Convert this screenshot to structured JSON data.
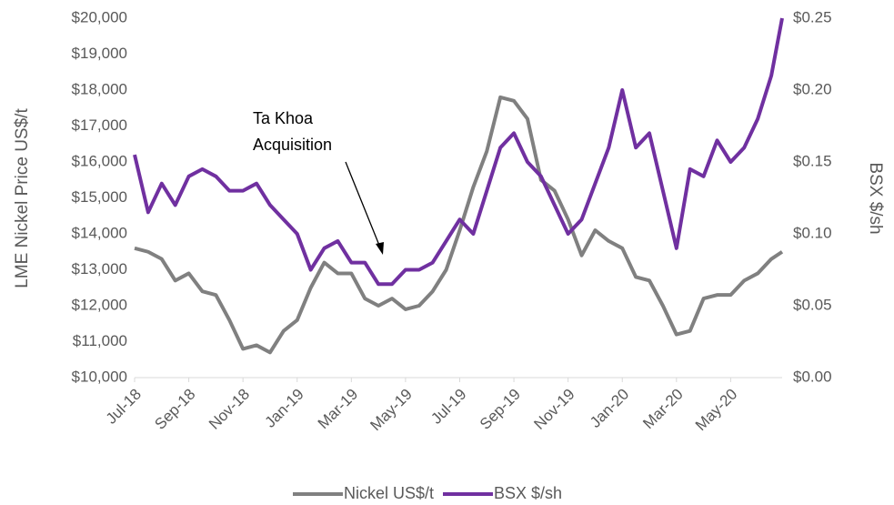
{
  "chart_data": {
    "type": "line",
    "annotation": [
      "Ta Khoa",
      "Acquisition"
    ],
    "ylabel": "LME Nickel Price US$/t",
    "y2label": "BSX $/sh",
    "x": [
      0,
      0.5,
      1,
      1.5,
      2,
      2.5,
      3,
      3.5,
      4,
      4.5,
      5,
      5.5,
      6,
      6.5,
      7,
      7.5,
      8,
      8.5,
      9,
      9.5,
      10,
      10.5,
      11,
      11.5,
      12,
      12.5,
      13,
      13.5,
      14,
      14.5,
      15,
      15.5,
      16,
      16.5,
      17,
      17.5,
      18,
      18.5,
      19,
      19.5,
      20,
      20.5,
      21,
      21.5,
      22,
      22.5,
      23,
      23.5,
      23.9
    ],
    "xlim": [
      0,
      23.9
    ],
    "xticks": [
      {
        "value": 0,
        "label": "Jul-18"
      },
      {
        "value": 2,
        "label": "Sep-18"
      },
      {
        "value": 4,
        "label": "Nov-18"
      },
      {
        "value": 6,
        "label": "Jan-19"
      },
      {
        "value": 8,
        "label": "Mar-19"
      },
      {
        "value": 10,
        "label": "May-19"
      },
      {
        "value": 12,
        "label": "Jul-19"
      },
      {
        "value": 14,
        "label": "Sep-19"
      },
      {
        "value": 16,
        "label": "Nov-19"
      },
      {
        "value": 18,
        "label": "Jan-20"
      },
      {
        "value": 20,
        "label": "Mar-20"
      },
      {
        "value": 22,
        "label": "May-20"
      }
    ],
    "ylim": [
      10000,
      20000
    ],
    "yticks": [
      {
        "value": 10000,
        "label": "$10,000"
      },
      {
        "value": 11000,
        "label": "$11,000"
      },
      {
        "value": 12000,
        "label": "$12,000"
      },
      {
        "value": 13000,
        "label": "$13,000"
      },
      {
        "value": 14000,
        "label": "$14,000"
      },
      {
        "value": 15000,
        "label": "$15,000"
      },
      {
        "value": 16000,
        "label": "$16,000"
      },
      {
        "value": 17000,
        "label": "$17,000"
      },
      {
        "value": 18000,
        "label": "$18,000"
      },
      {
        "value": 19000,
        "label": "$19,000"
      },
      {
        "value": 20000,
        "label": "$20,000"
      }
    ],
    "y2lim": [
      0,
      0.25
    ],
    "y2ticks": [
      {
        "value": 0,
        "label": "$0.00"
      },
      {
        "value": 0.05,
        "label": "$0.05"
      },
      {
        "value": 0.1,
        "label": "$0.10"
      },
      {
        "value": 0.15,
        "label": "$0.15"
      },
      {
        "value": 0.2,
        "label": "$0.20"
      },
      {
        "value": 0.25,
        "label": "$0.25"
      }
    ],
    "legend": "bottom",
    "series": [
      {
        "name": "Nickel US$/t",
        "color": "#808080",
        "values": [
          13600,
          13500,
          13300,
          12700,
          12900,
          12400,
          12300,
          11600,
          10800,
          10900,
          10700,
          11300,
          11600,
          12500,
          13200,
          12900,
          12900,
          12200,
          12000,
          12200,
          11900,
          12000,
          12400,
          13000,
          14100,
          15300,
          16300,
          17800,
          17700,
          17200,
          15500,
          15200,
          14400,
          13400,
          14100,
          13800,
          13600,
          12800,
          12700,
          12000,
          11200,
          11300,
          12200,
          12300,
          12300,
          12700,
          12900,
          13300,
          13500
        ]
      },
      {
        "name": "BSX $/sh",
        "color": "#7030a0",
        "axis": "y2",
        "values": [
          0.155,
          0.115,
          0.135,
          0.12,
          0.14,
          0.145,
          0.14,
          0.13,
          0.13,
          0.135,
          0.12,
          0.11,
          0.1,
          0.075,
          0.09,
          0.095,
          0.08,
          0.08,
          0.065,
          0.065,
          0.075,
          0.075,
          0.08,
          0.095,
          0.11,
          0.1,
          0.13,
          0.16,
          0.17,
          0.15,
          0.14,
          0.12,
          0.1,
          0.11,
          0.135,
          0.16,
          0.2,
          0.16,
          0.17,
          0.13,
          0.09,
          0.145,
          0.14,
          0.165,
          0.15,
          0.16,
          0.18,
          0.21,
          0.25
        ]
      }
    ]
  }
}
